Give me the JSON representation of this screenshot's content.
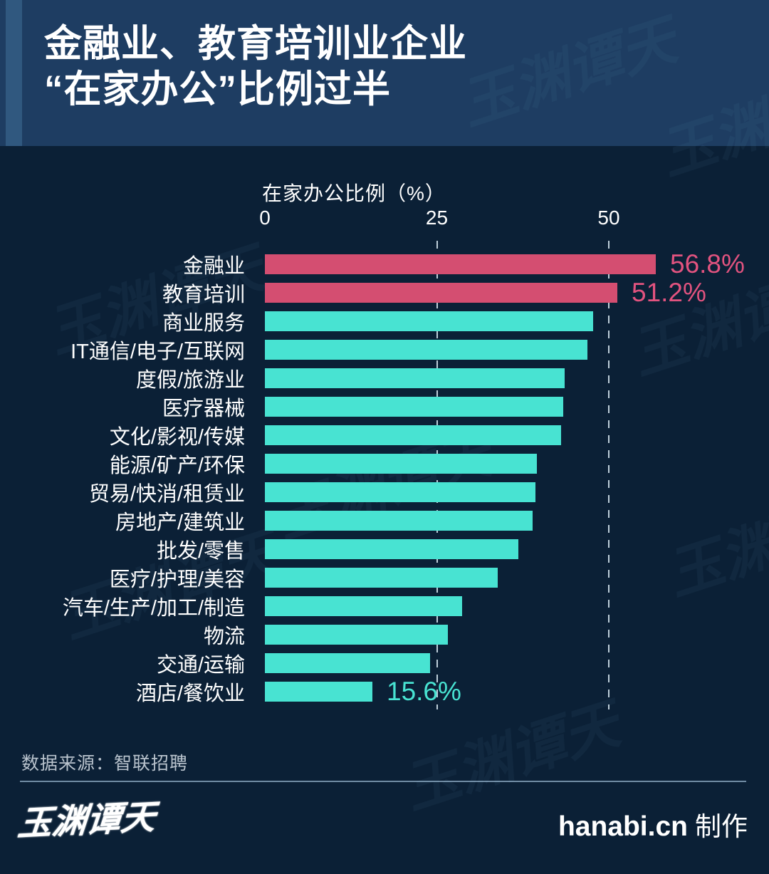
{
  "header": {
    "title_line1": "金融业、教育培训业企业",
    "title_line2": "“在家办公”比例过半"
  },
  "chart_data": {
    "type": "bar",
    "orientation": "horizontal",
    "axis_title": "在家办公比例（%）",
    "x_ticks": [
      0,
      25,
      50
    ],
    "grid_ticks": [
      25,
      50
    ],
    "xlim": [
      0,
      70
    ],
    "grid": "dashed-vertical",
    "legend": "none",
    "series": [
      {
        "label": "金融业",
        "value": 56.8,
        "value_label": "56.8%",
        "highlight": true
      },
      {
        "label": "教育培训",
        "value": 51.2,
        "value_label": "51.2%",
        "highlight": true
      },
      {
        "label": "商业服务",
        "value": 47.7,
        "highlight": false
      },
      {
        "label": "IT通信/电子/互联网",
        "value": 46.9,
        "highlight": false
      },
      {
        "label": "度假/旅游业",
        "value": 43.6,
        "highlight": false
      },
      {
        "label": "医疗器械",
        "value": 43.4,
        "highlight": false
      },
      {
        "label": "文化/影视/传媒",
        "value": 43.1,
        "highlight": false
      },
      {
        "label": "能源/矿产/环保",
        "value": 39.5,
        "highlight": false
      },
      {
        "label": "贸易/快消/租赁业",
        "value": 39.3,
        "highlight": false
      },
      {
        "label": "房地产/建筑业",
        "value": 38.9,
        "highlight": false
      },
      {
        "label": "批发/零售",
        "value": 36.9,
        "highlight": false
      },
      {
        "label": "医疗/护理/美容",
        "value": 33.8,
        "highlight": false
      },
      {
        "label": "汽车/生产/加工/制造",
        "value": 28.7,
        "highlight": false
      },
      {
        "label": "物流",
        "value": 26.6,
        "highlight": false
      },
      {
        "label": "交通/运输",
        "value": 24.0,
        "highlight": false
      },
      {
        "label": "酒店/餐饮业",
        "value": 15.6,
        "value_label": "15.6%",
        "highlight": false
      }
    ]
  },
  "colors": {
    "background": "#0b2036",
    "header_background": "#1e3d62",
    "header_accent": "#30587f",
    "bar_highlight": "#d44e71",
    "bar_normal": "#48e3d2",
    "value_label_highlight": "#e2537f",
    "value_label_normal": "#48e3d2",
    "text": "#ffffff",
    "source_text": "#b9c3cd"
  },
  "footer": {
    "source": "数据来源：智联招聘",
    "logo_text": "玉渊谭天",
    "credit_brand": "hanabi.cn",
    "credit_suffix": "制作"
  }
}
